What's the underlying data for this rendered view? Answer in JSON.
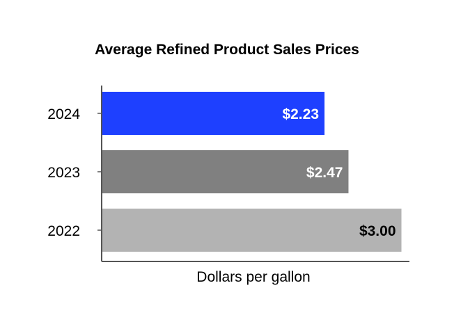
{
  "chart_data": {
    "type": "bar",
    "orientation": "horizontal",
    "title": "Average Refined Product Sales Prices",
    "xlabel": "Dollars per gallon",
    "ylabel": "",
    "categories": [
      "2024",
      "2023",
      "2022"
    ],
    "values": [
      2.23,
      2.47,
      3.0
    ],
    "data_labels": [
      "$2.23",
      "$2.47",
      "$3.00"
    ],
    "bar_colors": [
      "#1e40ff",
      "#808080",
      "#b3b3b3"
    ],
    "label_colors": [
      "#ffffff",
      "#ffffff",
      "#000000"
    ],
    "xlim": [
      0,
      3.08
    ],
    "grid": false,
    "legend": "none"
  }
}
